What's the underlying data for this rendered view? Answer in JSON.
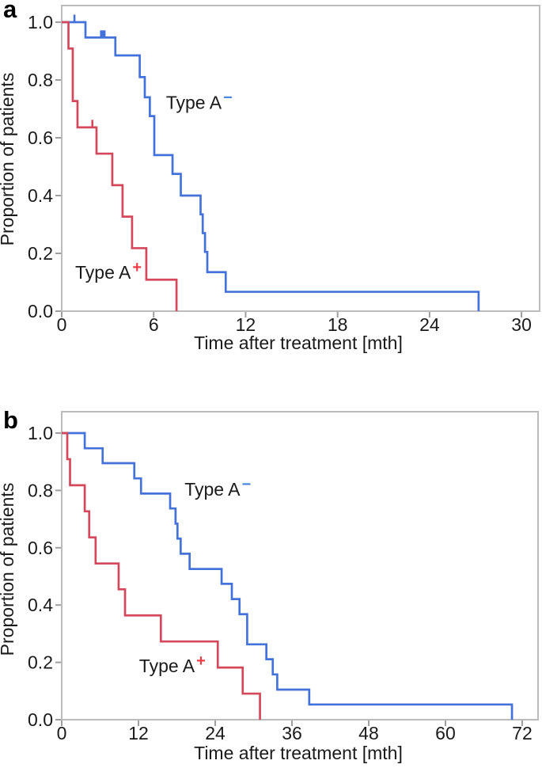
{
  "figure": {
    "panel_letters": [
      "a",
      "b"
    ]
  },
  "chart_data": [
    {
      "type": "line",
      "subtype": "kaplan-meier-step",
      "panel_label": "a",
      "xlabel": "Time after treatment [mth]",
      "ylabel": "Proportion of patients",
      "x_ticks": [
        0,
        6,
        12,
        18,
        24,
        30
      ],
      "y_ticks": [
        "1.0",
        "0.8",
        "0.6",
        "0.4",
        "0.2",
        "0.0"
      ],
      "xlim": [
        0,
        31.2
      ],
      "ylim": [
        0,
        1.06
      ],
      "grid": false,
      "legend_position": "none",
      "series": [
        {
          "id": "type-a-negative",
          "name": "Type A−",
          "color": "#4472db",
          "steps": [
            [
              0,
              1.0
            ],
            [
              1.55,
              0.947
            ],
            [
              3.5,
              0.885
            ],
            [
              5.09,
              0.81
            ],
            [
              5.42,
              0.74
            ],
            [
              5.75,
              0.675
            ],
            [
              6.04,
              0.54
            ],
            [
              7.23,
              0.475
            ],
            [
              7.77,
              0.4
            ],
            [
              9.06,
              0.335
            ],
            [
              9.2,
              0.27
            ],
            [
              9.35,
              0.205
            ],
            [
              9.5,
              0.135
            ],
            [
              10.7,
              0.067
            ],
            [
              27.2,
              0
            ]
          ],
          "censor_ticks": [
            [
              0.83,
              1.0
            ]
          ],
          "censor_squares": [
            [
              2.68,
              0.947
            ]
          ]
        },
        {
          "id": "type-a-positive",
          "name": "Type A+",
          "color": "#d4485c",
          "steps": [
            [
              0,
              1.0
            ],
            [
              0.44,
              0.909
            ],
            [
              0.72,
              0.727
            ],
            [
              1.03,
              0.636
            ],
            [
              2.27,
              0.545
            ],
            [
              3.3,
              0.436
            ],
            [
              3.97,
              0.327
            ],
            [
              4.59,
              0.218
            ],
            [
              5.52,
              0.109
            ],
            [
              7.49,
              0
            ]
          ],
          "censor_ticks": [
            [
              2.0,
              0.636
            ]
          ],
          "censor_squares": []
        }
      ],
      "annotations": [
        {
          "text": "Type A",
          "sup": "−",
          "sup_color": "#4a86e0",
          "x": 6.8,
          "y": 0.7
        },
        {
          "text": "Type A",
          "sup": "+",
          "sup_color": "#ef3d47",
          "x": 0.88,
          "y": 0.112
        }
      ]
    },
    {
      "type": "line",
      "subtype": "kaplan-meier-step",
      "panel_label": "b",
      "xlabel": "Time after treatment [mth]",
      "ylabel": "Proportion of patients",
      "x_ticks": [
        0,
        12,
        24,
        36,
        48,
        60,
        72
      ],
      "y_ticks": [
        "1.0",
        "0.8",
        "0.6",
        "0.4",
        "0.2",
        "0.0"
      ],
      "xlim": [
        0,
        74.5
      ],
      "ylim": [
        0,
        1.06
      ],
      "grid": false,
      "legend_position": "none",
      "series": [
        {
          "id": "type-a-negative",
          "name": "Type A−",
          "color": "#4472db",
          "steps": [
            [
              0,
              1.0
            ],
            [
              3.6,
              0.947
            ],
            [
              6.4,
              0.895
            ],
            [
              11.35,
              0.842
            ],
            [
              12.4,
              0.789
            ],
            [
              16.95,
              0.737
            ],
            [
              17.8,
              0.684
            ],
            [
              18.1,
              0.632
            ],
            [
              18.6,
              0.579
            ],
            [
              20.0,
              0.526
            ],
            [
              25.0,
              0.474
            ],
            [
              26.6,
              0.421
            ],
            [
              27.8,
              0.368
            ],
            [
              29.0,
              0.263
            ],
            [
              32.0,
              0.211
            ],
            [
              33.0,
              0.158
            ],
            [
              33.7,
              0.105
            ],
            [
              38.7,
              0.053
            ],
            [
              70.4,
              0
            ]
          ],
          "censor_ticks": [],
          "censor_squares": []
        },
        {
          "id": "type-a-positive",
          "name": "Type A+",
          "color": "#d4485c",
          "steps": [
            [
              0,
              1.0
            ],
            [
              0.87,
              0.909
            ],
            [
              1.3,
              0.818
            ],
            [
              3.6,
              0.727
            ],
            [
              4.3,
              0.636
            ],
            [
              5.3,
              0.545
            ],
            [
              8.9,
              0.455
            ],
            [
              9.9,
              0.364
            ],
            [
              15.5,
              0.273
            ],
            [
              24.4,
              0.182
            ],
            [
              28.3,
              0.091
            ],
            [
              31.0,
              0
            ]
          ],
          "censor_ticks": [],
          "censor_squares": []
        }
      ],
      "annotations": [
        {
          "text": "Type A",
          "sup": "−",
          "sup_color": "#4a86e0",
          "x": 19.2,
          "y": 0.782
        },
        {
          "text": "Type A",
          "sup": "+",
          "sup_color": "#ef3d47",
          "x": 12.1,
          "y": 0.166
        }
      ]
    }
  ]
}
